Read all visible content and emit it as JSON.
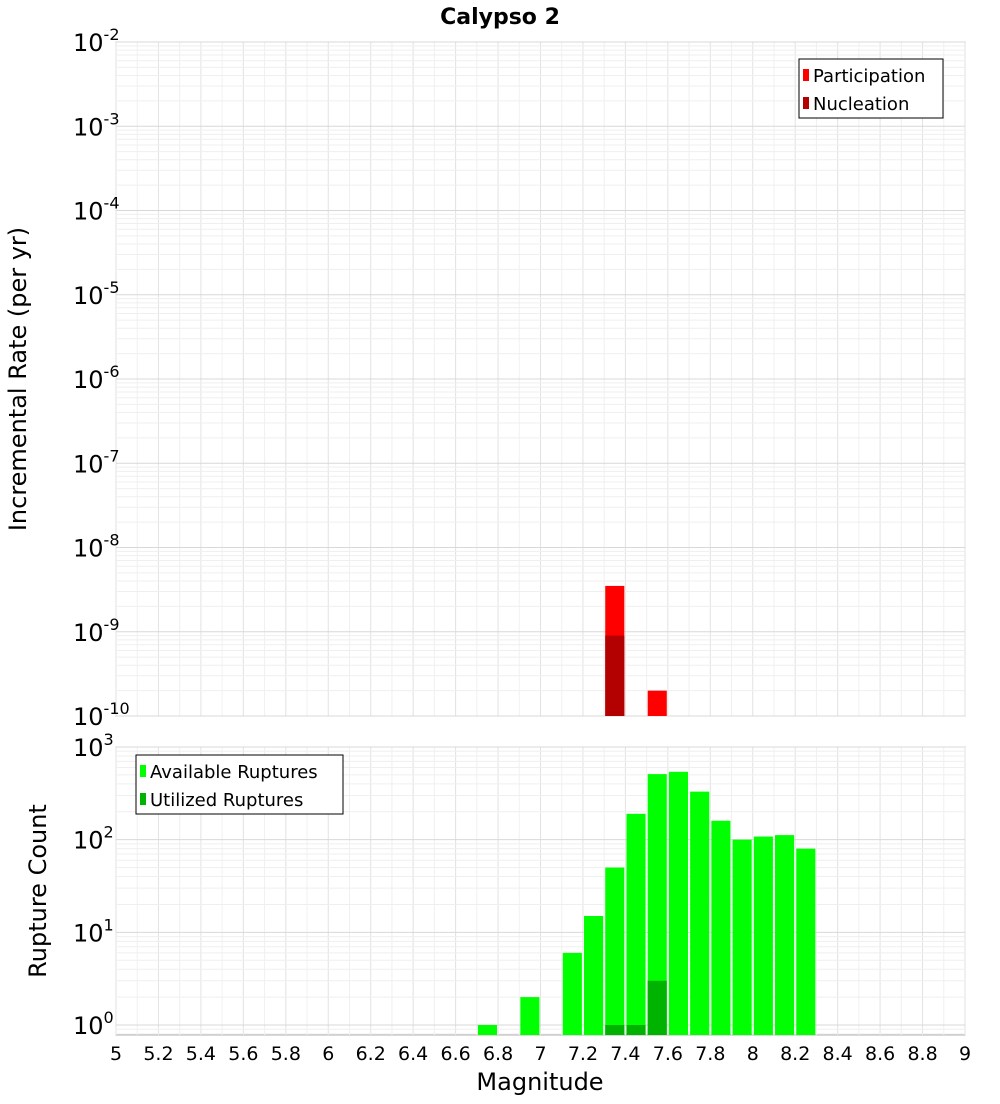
{
  "chart_data": [
    {
      "type": "bar",
      "panel": "top",
      "title": "Calypso 2",
      "ylabel": "Incremental Rate (per yr)",
      "xlabel": "",
      "xlim": [
        5,
        9
      ],
      "ylim": [
        1e-10,
        0.01
      ],
      "yscale": "log",
      "grid": true,
      "legend_position": "top-right",
      "yticks": [
        {
          "base": "10",
          "exp": "-10"
        },
        {
          "base": "10",
          "exp": "-9"
        },
        {
          "base": "10",
          "exp": "-8"
        },
        {
          "base": "10",
          "exp": "-7"
        },
        {
          "base": "10",
          "exp": "-6"
        },
        {
          "base": "10",
          "exp": "-5"
        },
        {
          "base": "10",
          "exp": "-4"
        },
        {
          "base": "10",
          "exp": "-3"
        },
        {
          "base": "10",
          "exp": "-2"
        }
      ],
      "bar_width": 0.09,
      "series": [
        {
          "name": "Participation",
          "color": "#ff0000",
          "points": [
            {
              "x": 7.35,
              "y": 3.5e-09
            },
            {
              "x": 7.55,
              "y": 2e-10
            }
          ]
        },
        {
          "name": "Nucleation",
          "color": "#b30000",
          "points": [
            {
              "x": 7.35,
              "y": 9e-10
            }
          ]
        }
      ]
    },
    {
      "type": "bar",
      "panel": "bottom",
      "title": "",
      "ylabel": "Rupture Count",
      "xlabel": "Magnitude",
      "xlim": [
        5,
        9
      ],
      "ylim": [
        0.78,
        1000
      ],
      "yscale": "log",
      "grid": true,
      "legend_position": "top-left",
      "xticks": [
        "5",
        "5.2",
        "5.4",
        "5.6",
        "5.8",
        "6",
        "6.2",
        "6.4",
        "6.6",
        "6.8",
        "7",
        "7.2",
        "7.4",
        "7.6",
        "7.8",
        "8",
        "8.2",
        "8.4",
        "8.6",
        "8.8",
        "9"
      ],
      "yticks": [
        {
          "base": "10",
          "exp": "0"
        },
        {
          "base": "10",
          "exp": "1"
        },
        {
          "base": "10",
          "exp": "2"
        },
        {
          "base": "10",
          "exp": "3"
        }
      ],
      "bar_width": 0.09,
      "series": [
        {
          "name": "Available Ruptures",
          "color": "#00ff00",
          "points": [
            {
              "x": 6.75,
              "y": 1
            },
            {
              "x": 6.95,
              "y": 2
            },
            {
              "x": 7.15,
              "y": 6
            },
            {
              "x": 7.25,
              "y": 15
            },
            {
              "x": 7.35,
              "y": 50
            },
            {
              "x": 7.45,
              "y": 190
            },
            {
              "x": 7.55,
              "y": 510
            },
            {
              "x": 7.65,
              "y": 540
            },
            {
              "x": 7.75,
              "y": 330
            },
            {
              "x": 7.85,
              "y": 160
            },
            {
              "x": 7.95,
              "y": 100
            },
            {
              "x": 8.05,
              "y": 108
            },
            {
              "x": 8.15,
              "y": 112
            },
            {
              "x": 8.25,
              "y": 80
            }
          ]
        },
        {
          "name": "Utilized Ruptures",
          "color": "#00b300",
          "points": [
            {
              "x": 7.35,
              "y": 1
            },
            {
              "x": 7.45,
              "y": 1
            },
            {
              "x": 7.55,
              "y": 3
            }
          ]
        }
      ]
    }
  ]
}
